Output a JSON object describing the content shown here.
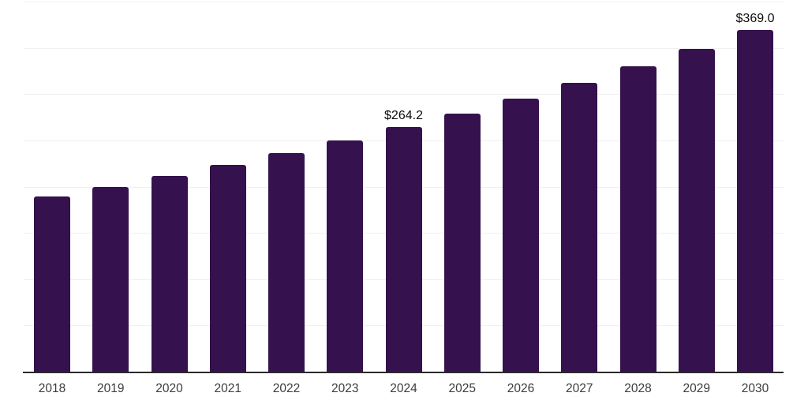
{
  "chart_data": {
    "type": "bar",
    "title": "",
    "xlabel": "",
    "ylabel": "",
    "categories": [
      "2018",
      "2019",
      "2020",
      "2021",
      "2022",
      "2023",
      "2024",
      "2025",
      "2026",
      "2027",
      "2028",
      "2029",
      "2030"
    ],
    "values": [
      189.2,
      200.0,
      211.5,
      223.6,
      236.4,
      249.9,
      264.2,
      279.3,
      295.3,
      312.2,
      330.1,
      349.0,
      369.0
    ],
    "data_labels": {
      "2024": "$264.2",
      "2030": "$369.0"
    },
    "ylim": [
      0,
      400
    ],
    "grid_step": 50,
    "grid": "horizontal-only",
    "legend": "none",
    "colors": {
      "bar": "#35114E",
      "axis": "#2B2B2B",
      "gridline": "#F0F0F1",
      "tick_label": "#3C3C3C",
      "data_label": "#0A0A0A",
      "background": "#FFFFFF"
    }
  }
}
